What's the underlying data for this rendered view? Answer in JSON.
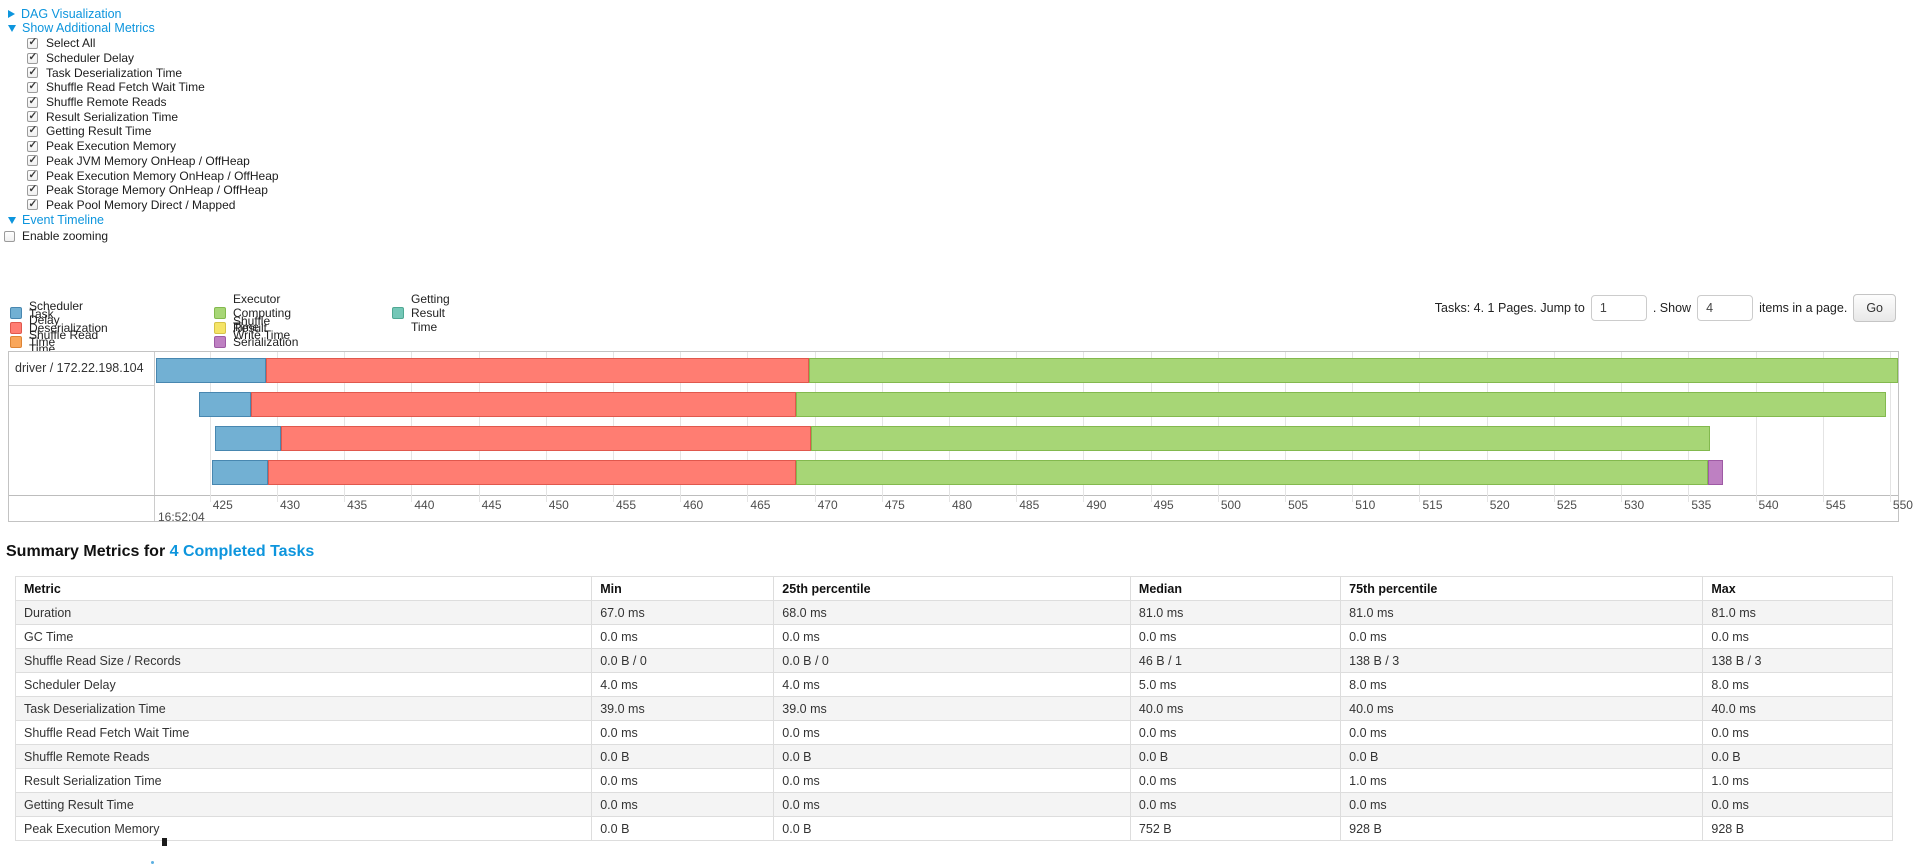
{
  "toggles": {
    "dag": "DAG Visualization",
    "metrics": "Show Additional Metrics",
    "timeline": "Event Timeline"
  },
  "additional_metrics": {
    "items": [
      {
        "label": "Select All",
        "checked": true
      },
      {
        "label": "Scheduler Delay",
        "checked": true
      },
      {
        "label": "Task Deserialization Time",
        "checked": true
      },
      {
        "label": "Shuffle Read Fetch Wait Time",
        "checked": true
      },
      {
        "label": "Shuffle Remote Reads",
        "checked": true
      },
      {
        "label": "Result Serialization Time",
        "checked": true
      },
      {
        "label": "Getting Result Time",
        "checked": true
      },
      {
        "label": "Peak Execution Memory",
        "checked": true
      },
      {
        "label": "Peak JVM Memory OnHeap / OffHeap",
        "checked": true
      },
      {
        "label": "Peak Execution Memory OnHeap / OffHeap",
        "checked": true
      },
      {
        "label": "Peak Storage Memory OnHeap / OffHeap",
        "checked": true
      },
      {
        "label": "Peak Pool Memory Direct / Mapped",
        "checked": true
      }
    ]
  },
  "enable_zooming": {
    "label": "Enable zooming",
    "checked": false
  },
  "pagination": {
    "tasks_text": "Tasks: 4. 1 Pages. Jump to",
    "jump_value": "1",
    "show_text": ". Show",
    "items_value": "4",
    "items_text": "items in a page.",
    "go_label": "Go"
  },
  "legend": {
    "columns": [
      [
        {
          "name": "Scheduler Delay",
          "fill": "#72B0D3",
          "border": "#4887B0"
        },
        {
          "name": "Task Deserialization Time",
          "fill": "#FF7D72",
          "border": "#E0584D"
        },
        {
          "name": "Shuffle Read Time",
          "fill": "#F9A65A",
          "border": "#DD8435"
        }
      ],
      [
        {
          "name": "Executor Computing Time",
          "fill": "#A7D676",
          "border": "#83B94E"
        },
        {
          "name": "Shuffle Write Time",
          "fill": "#F5E467",
          "border": "#D6C348"
        },
        {
          "name": "Result Serialization Time",
          "fill": "#BE80C2",
          "border": "#9E5AA4"
        }
      ],
      [
        {
          "name": "Getting Result Time",
          "fill": "#74C7B7",
          "border": "#4FA893"
        }
      ]
    ]
  },
  "chart_data": {
    "type": "timeline",
    "group_label": "driver / 172.22.198.104",
    "axis": {
      "unit": "ms",
      "start": 421.0,
      "end": 550.6,
      "tick_start": 425,
      "tick_end": 550,
      "tick_step": 5,
      "major_label": "16:52:04"
    },
    "tasks": [
      {
        "segments": [
          {
            "metric": "Scheduler Delay",
            "start": 421.0,
            "end": 429.2
          },
          {
            "metric": "Task Deserialization Time",
            "start": 429.2,
            "end": 469.6
          },
          {
            "metric": "Executor Computing Time",
            "start": 469.6,
            "end": 550.6
          }
        ]
      },
      {
        "segments": [
          {
            "metric": "Scheduler Delay",
            "start": 424.2,
            "end": 428.1
          },
          {
            "metric": "Task Deserialization Time",
            "start": 428.1,
            "end": 468.6
          },
          {
            "metric": "Executor Computing Time",
            "start": 468.6,
            "end": 549.7
          }
        ]
      },
      {
        "segments": [
          {
            "metric": "Scheduler Delay",
            "start": 425.4,
            "end": 430.3
          },
          {
            "metric": "Task Deserialization Time",
            "start": 430.3,
            "end": 469.7
          },
          {
            "metric": "Executor Computing Time",
            "start": 469.7,
            "end": 536.6
          }
        ]
      },
      {
        "segments": [
          {
            "metric": "Scheduler Delay",
            "start": 425.2,
            "end": 429.3
          },
          {
            "metric": "Task Deserialization Time",
            "start": 429.3,
            "end": 468.6
          },
          {
            "metric": "Executor Computing Time",
            "start": 468.6,
            "end": 536.5
          },
          {
            "metric": "Result Serialization Time",
            "start": 536.5,
            "end": 537.6
          }
        ]
      }
    ]
  },
  "summary": {
    "title_prefix": "Summary Metrics for",
    "title_link": "4 Completed Tasks",
    "columns": [
      "Metric",
      "Min",
      "25th percentile",
      "Median",
      "75th percentile",
      "Max"
    ],
    "rows": [
      {
        "metric": "Duration",
        "values": [
          "67.0 ms",
          "68.0 ms",
          "81.0 ms",
          "81.0 ms",
          "81.0 ms"
        ]
      },
      {
        "metric": "GC Time",
        "values": [
          "0.0 ms",
          "0.0 ms",
          "0.0 ms",
          "0.0 ms",
          "0.0 ms"
        ]
      },
      {
        "metric": "Shuffle Read Size / Records",
        "values": [
          "0.0 B / 0",
          "0.0 B / 0",
          "46 B / 1",
          "138 B / 3",
          "138 B / 3"
        ]
      },
      {
        "metric": "Scheduler Delay",
        "values": [
          "4.0 ms",
          "4.0 ms",
          "5.0 ms",
          "8.0 ms",
          "8.0 ms"
        ]
      },
      {
        "metric": "Task Deserialization Time",
        "values": [
          "39.0 ms",
          "39.0 ms",
          "40.0 ms",
          "40.0 ms",
          "40.0 ms"
        ]
      },
      {
        "metric": "Shuffle Read Fetch Wait Time",
        "values": [
          "0.0 ms",
          "0.0 ms",
          "0.0 ms",
          "0.0 ms",
          "0.0 ms"
        ]
      },
      {
        "metric": "Shuffle Remote Reads",
        "values": [
          "0.0 B",
          "0.0 B",
          "0.0 B",
          "0.0 B",
          "0.0 B"
        ]
      },
      {
        "metric": "Result Serialization Time",
        "values": [
          "0.0 ms",
          "0.0 ms",
          "0.0 ms",
          "1.0 ms",
          "1.0 ms"
        ]
      },
      {
        "metric": "Getting Result Time",
        "values": [
          "0.0 ms",
          "0.0 ms",
          "0.0 ms",
          "0.0 ms",
          "0.0 ms"
        ]
      },
      {
        "metric": "Peak Execution Memory",
        "values": [
          "0.0 B",
          "0.0 B",
          "752 B",
          "928 B",
          "928 B"
        ]
      }
    ]
  }
}
